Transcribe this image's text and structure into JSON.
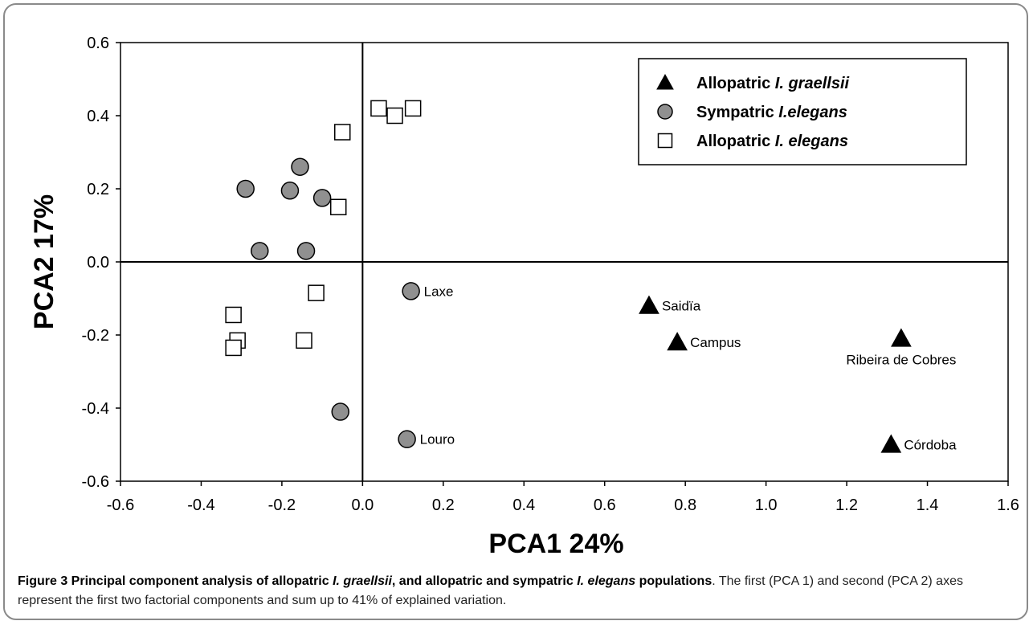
{
  "chart_data": {
    "type": "scatter",
    "xlabel": "PCA1 24%",
    "ylabel": "PCA2 17%",
    "xlim": [
      -0.6,
      1.6
    ],
    "ylim": [
      -0.6,
      0.6
    ],
    "xticks": [
      "-0.6",
      "-0.4",
      "-0.2",
      "0.0",
      "0.2",
      "0.4",
      "0.6",
      "0.8",
      "1.0",
      "1.2",
      "1.4",
      "1.6"
    ],
    "yticks": [
      "0.6",
      "0.4",
      "0.2",
      "0.0",
      "-0.2",
      "-0.4",
      "-0.6"
    ],
    "grid": false,
    "legend_position": "top-right",
    "series": [
      {
        "name_parts": [
          "Allopatric ",
          "I. graellsii"
        ],
        "marker": "triangle",
        "color": "#000000",
        "points": [
          {
            "x": 0.71,
            "y": -0.12,
            "label": "Saidïa"
          },
          {
            "x": 0.78,
            "y": -0.22,
            "label": "Campus"
          },
          {
            "x": 1.335,
            "y": -0.21,
            "label": "Ribeira de Cobres"
          },
          {
            "x": 1.31,
            "y": -0.5,
            "label": "Córdoba"
          }
        ]
      },
      {
        "name_parts": [
          "Sympatric ",
          "I.elegans"
        ],
        "marker": "circle",
        "color": "#909090",
        "points": [
          {
            "x": -0.29,
            "y": 0.2
          },
          {
            "x": -0.155,
            "y": 0.26
          },
          {
            "x": -0.18,
            "y": 0.195
          },
          {
            "x": -0.1,
            "y": 0.175
          },
          {
            "x": -0.255,
            "y": 0.03
          },
          {
            "x": -0.14,
            "y": 0.03
          },
          {
            "x": 0.12,
            "y": -0.08,
            "label": "Laxe"
          },
          {
            "x": -0.055,
            "y": -0.41
          },
          {
            "x": 0.11,
            "y": -0.485,
            "label": "Louro"
          }
        ]
      },
      {
        "name_parts": [
          "Allopatric ",
          "I. elegans"
        ],
        "marker": "square",
        "color": "#ffffff",
        "points": [
          {
            "x": 0.04,
            "y": 0.42
          },
          {
            "x": 0.08,
            "y": 0.4
          },
          {
            "x": 0.125,
            "y": 0.42
          },
          {
            "x": -0.05,
            "y": 0.355
          },
          {
            "x": -0.06,
            "y": 0.15
          },
          {
            "x": -0.115,
            "y": -0.085
          },
          {
            "x": -0.32,
            "y": -0.145
          },
          {
            "x": -0.31,
            "y": -0.215
          },
          {
            "x": -0.32,
            "y": -0.235
          },
          {
            "x": -0.145,
            "y": -0.215
          }
        ]
      }
    ]
  },
  "caption": {
    "bold_parts": [
      {
        "text": "Figure 3 Principal component analysis of allopatric ",
        "italic": false
      },
      {
        "text": "I. graellsii",
        "italic": true
      },
      {
        "text": ", and allopatric and sympatric ",
        "italic": false
      },
      {
        "text": "I. elegans",
        "italic": true
      },
      {
        "text": " populations",
        "italic": false
      }
    ],
    "rest": ". The first (PCA 1) and second (PCA 2) axes represent the first two factorial components and sum up to 41% of explained variation."
  }
}
